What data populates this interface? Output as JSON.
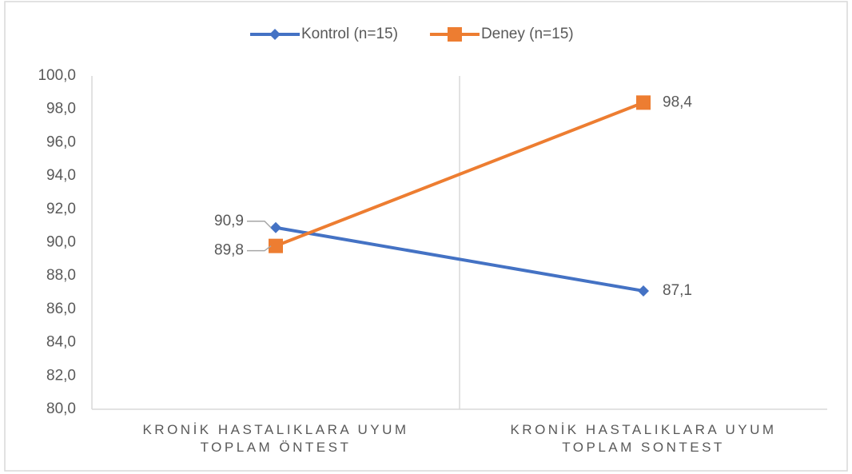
{
  "chart_data": {
    "type": "line",
    "categories": [
      "KRONİK HASTALIKLARA UYUM TOPLAM ÖNTEST",
      "KRONİK HASTALIKLARA UYUM TOPLAM SONTEST"
    ],
    "series": [
      {
        "name": "Kontrol (n=15)",
        "color": "#4472c4",
        "marker": "diamond",
        "values": [
          90.9,
          87.1
        ],
        "value_labels": [
          "90,9",
          "87,1"
        ]
      },
      {
        "name": "Deney (n=15)",
        "color": "#ed7d31",
        "marker": "square",
        "values": [
          89.8,
          98.4
        ],
        "value_labels": [
          "89,8",
          "98,4"
        ]
      }
    ],
    "ylim": [
      80,
      100
    ],
    "yticks": [
      {
        "value": 80,
        "label": "80,0"
      },
      {
        "value": 82,
        "label": "82,0"
      },
      {
        "value": 84,
        "label": "84,0"
      },
      {
        "value": 86,
        "label": "86,0"
      },
      {
        "value": 88,
        "label": "88,0"
      },
      {
        "value": 90,
        "label": "90,0"
      },
      {
        "value": 92,
        "label": "92,0"
      },
      {
        "value": 94,
        "label": "94,0"
      },
      {
        "value": 96,
        "label": "96,0"
      },
      {
        "value": 98,
        "label": "98,0"
      },
      {
        "value": 100,
        "label": "100,0"
      }
    ],
    "legend": "top"
  }
}
